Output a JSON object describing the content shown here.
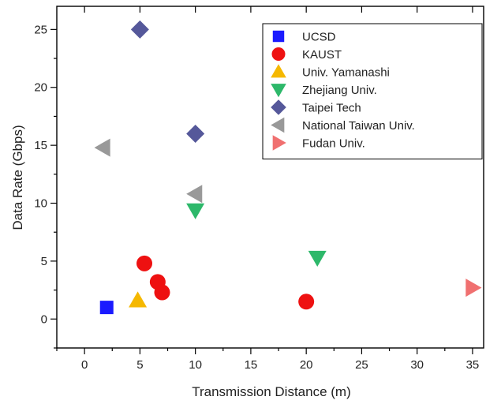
{
  "chart_data": {
    "type": "scatter",
    "xlabel": "Transmission Distance (m)",
    "ylabel": "Data Rate (Gbps)",
    "xlim": [
      -2.5,
      36
    ],
    "ylim": [
      -2.5,
      27
    ],
    "xticks": [
      0,
      5,
      10,
      15,
      20,
      25,
      30,
      35
    ],
    "yticks": [
      0,
      5,
      10,
      15,
      20,
      25
    ],
    "grid": false,
    "legend_position": "top-right",
    "series": [
      {
        "name": "UCSD",
        "marker": "square",
        "color": "#1a1aff",
        "points": [
          [
            2,
            1.0
          ]
        ]
      },
      {
        "name": "KAUST",
        "marker": "circle",
        "color": "#ee1111",
        "points": [
          [
            5.4,
            4.8
          ],
          [
            6.6,
            3.2
          ],
          [
            7.0,
            2.3
          ],
          [
            20,
            1.5
          ]
        ]
      },
      {
        "name": "Univ. Yamanashi",
        "marker": "triangle-up",
        "color": "#f5b800",
        "points": [
          [
            4.8,
            1.6
          ]
        ]
      },
      {
        "name": "Zhejiang Univ.",
        "marker": "triangle-down",
        "color": "#2db86a",
        "points": [
          [
            10,
            9.4
          ],
          [
            21,
            5.3
          ]
        ]
      },
      {
        "name": "Taipei Tech",
        "marker": "diamond",
        "color": "#55589a",
        "points": [
          [
            5,
            25
          ],
          [
            10,
            16
          ]
        ]
      },
      {
        "name": "National Taiwan Univ.",
        "marker": "triangle-left",
        "color": "#999999",
        "points": [
          [
            1.7,
            14.8
          ],
          [
            10,
            10.8
          ]
        ]
      },
      {
        "name": "Fudan Univ.",
        "marker": "triangle-right",
        "color": "#f07070",
        "points": [
          [
            35,
            2.7
          ]
        ]
      }
    ]
  }
}
